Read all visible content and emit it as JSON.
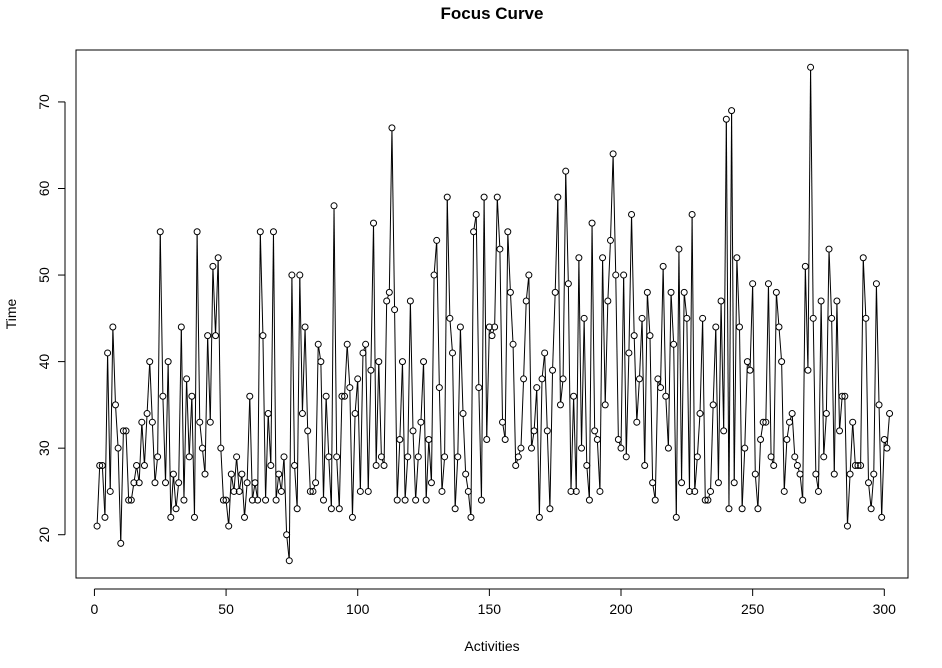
{
  "chart_data": {
    "type": "line",
    "title": "Focus Curve",
    "xlabel": "Activities",
    "ylabel": "Time",
    "xlim": [
      -7,
      309
    ],
    "ylim": [
      15,
      76
    ],
    "xticks": [
      0,
      50,
      100,
      150,
      200,
      250,
      300
    ],
    "yticks": [
      20,
      30,
      40,
      50,
      60,
      70
    ],
    "markers": "open-circle",
    "line_color": "#000000",
    "grid": false,
    "series": [
      {
        "values": [
          21,
          28,
          28,
          22,
          41,
          25,
          44,
          35,
          30,
          19,
          32,
          32,
          24,
          24,
          26,
          28,
          26,
          33,
          28,
          34,
          40,
          33,
          26,
          29,
          55,
          36,
          26,
          40,
          22,
          27,
          23,
          26,
          44,
          24,
          38,
          29,
          36,
          22,
          55,
          33,
          30,
          27,
          43,
          33,
          51,
          43,
          52,
          30,
          24,
          24,
          21,
          27,
          25,
          29,
          25,
          27,
          22,
          26,
          36,
          24,
          26,
          24,
          55,
          43,
          24,
          34,
          28,
          55,
          24,
          27,
          25,
          29,
          20,
          17,
          50,
          28,
          23,
          50,
          34,
          44,
          32,
          25,
          25,
          26,
          42,
          40,
          24,
          36,
          29,
          23,
          58,
          29,
          23,
          36,
          36,
          42,
          37,
          22,
          34,
          38,
          25,
          41,
          42,
          25,
          39,
          56,
          28,
          40,
          29,
          28,
          47,
          48,
          67,
          46,
          24,
          31,
          40,
          24,
          29,
          47,
          32,
          24,
          29,
          33,
          40,
          24,
          31,
          26,
          50,
          54,
          37,
          25,
          29,
          59,
          45,
          41,
          23,
          29,
          44,
          34,
          27,
          25,
          22,
          55,
          57,
          37,
          24,
          59,
          31,
          44,
          43,
          44,
          59,
          53,
          33,
          31,
          55,
          48,
          42,
          28,
          29,
          30,
          38,
          47,
          50,
          30,
          32,
          37,
          22,
          38,
          41,
          32,
          23,
          39,
          48,
          59,
          35,
          38,
          62,
          49,
          25,
          36,
          25,
          52,
          30,
          45,
          28,
          24,
          56,
          32,
          31,
          25,
          52,
          35,
          47,
          54,
          64,
          50,
          31,
          30,
          50,
          29,
          41,
          57,
          43,
          33,
          38,
          45,
          28,
          48,
          43,
          26,
          24,
          38,
          37,
          51,
          36,
          30,
          48,
          42,
          22,
          53,
          26,
          48,
          45,
          25,
          57,
          25,
          29,
          34,
          45,
          24,
          24,
          25,
          35,
          44,
          26,
          47,
          32,
          68,
          23,
          69,
          26,
          52,
          44,
          23,
          30,
          40,
          39,
          49,
          27,
          23,
          31,
          33,
          33,
          49,
          29,
          28,
          48,
          44,
          40,
          25,
          31,
          33,
          34,
          29,
          28,
          27,
          24,
          51,
          39,
          74,
          45,
          27,
          25,
          47,
          29,
          34,
          53,
          45,
          27,
          47,
          32,
          36,
          36,
          21,
          27,
          33,
          28,
          28,
          28,
          52,
          45,
          26,
          23,
          27,
          49,
          35,
          22,
          31,
          30,
          34
        ]
      }
    ]
  }
}
